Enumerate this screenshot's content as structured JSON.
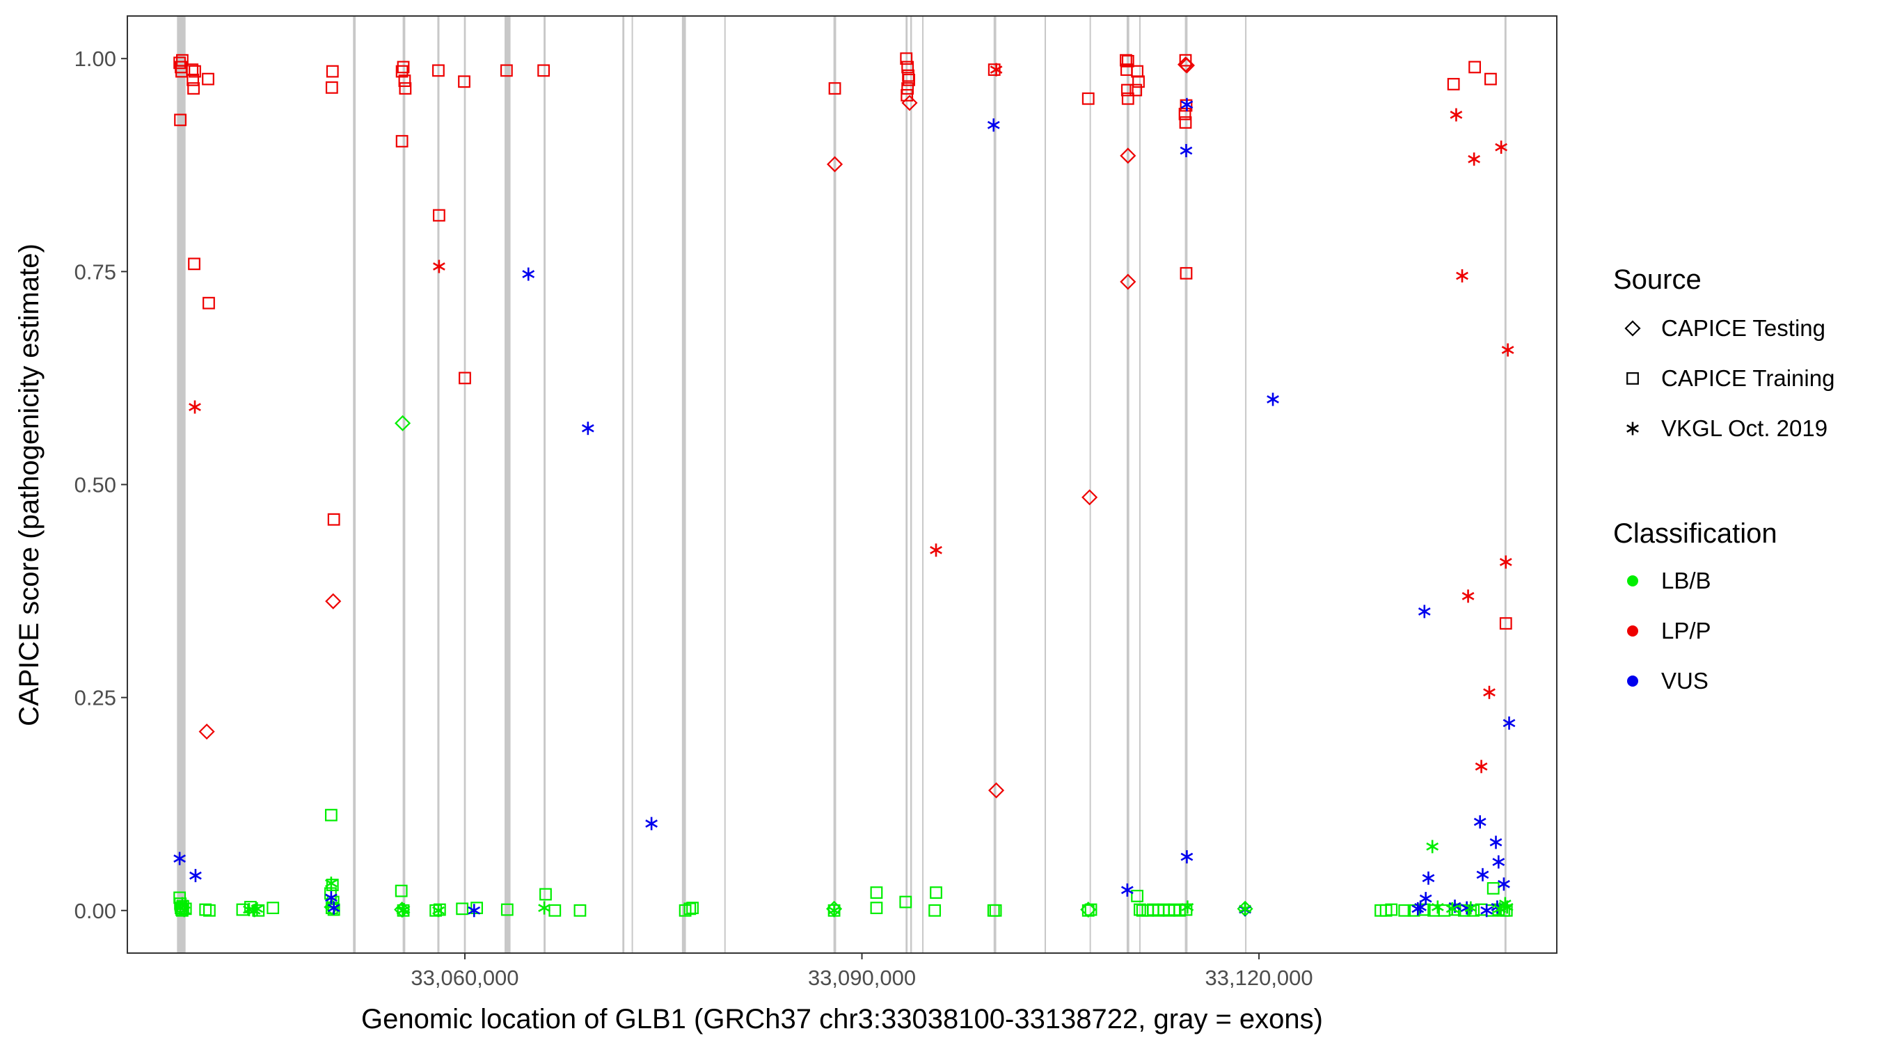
{
  "chart_data": {
    "type": "scatter",
    "title": "",
    "xlabel": "Genomic location of GLB1 (GRCh37 chr3:33038100-33138722, gray = exons)",
    "ylabel": "CAPICE score (pathogenicity estimate)",
    "xlim": [
      33034500,
      33142500
    ],
    "ylim": [
      -0.05,
      1.05
    ],
    "x_ticks": [
      {
        "value": 33060000,
        "label": "33,060,000"
      },
      {
        "value": 33090000,
        "label": "33,090,000"
      },
      {
        "value": 33120000,
        "label": "33,120,000"
      }
    ],
    "y_ticks": [
      {
        "value": 0.0,
        "label": "0.00"
      },
      {
        "value": 0.25,
        "label": "0.25"
      },
      {
        "value": 0.5,
        "label": "0.50"
      },
      {
        "value": 0.75,
        "label": "0.75"
      },
      {
        "value": 1.0,
        "label": "1.00"
      }
    ],
    "grid": false,
    "exons": [
      {
        "start": 33038250,
        "end": 33038900
      },
      {
        "start": 33051550,
        "end": 33051750
      },
      {
        "start": 33055300,
        "end": 33055500
      },
      {
        "start": 33057920,
        "end": 33058080
      },
      {
        "start": 33059930,
        "end": 33060070
      },
      {
        "start": 33063000,
        "end": 33063450
      },
      {
        "start": 33065950,
        "end": 33066100
      },
      {
        "start": 33071900,
        "end": 33072050
      },
      {
        "start": 33072600,
        "end": 33072700
      },
      {
        "start": 33076400,
        "end": 33076700
      },
      {
        "start": 33079600,
        "end": 33079700
      },
      {
        "start": 33087850,
        "end": 33088050
      },
      {
        "start": 33093300,
        "end": 33093450
      },
      {
        "start": 33093650,
        "end": 33093780
      },
      {
        "start": 33094550,
        "end": 33094650
      },
      {
        "start": 33099950,
        "end": 33100150
      },
      {
        "start": 33103800,
        "end": 33103900
      },
      {
        "start": 33107200,
        "end": 33107300
      },
      {
        "start": 33110000,
        "end": 33110200
      },
      {
        "start": 33110950,
        "end": 33111050
      },
      {
        "start": 33114400,
        "end": 33114600
      },
      {
        "start": 33118950,
        "end": 33119050
      },
      {
        "start": 33138550,
        "end": 33138700
      }
    ],
    "series": [
      {
        "source": "CAPICE Testing",
        "classification": "LP/P",
        "points": [
          [
            33040500,
            0.21
          ],
          [
            33050050,
            0.363
          ],
          [
            33087950,
            0.876
          ],
          [
            33093600,
            0.948
          ],
          [
            33100150,
            0.141
          ],
          [
            33107200,
            0.485
          ],
          [
            33110100,
            0.886
          ],
          [
            33110100,
            0.738
          ],
          [
            33114450,
            0.993
          ],
          [
            33114550,
            0.992
          ]
        ]
      },
      {
        "source": "CAPICE Testing",
        "classification": "LB/B",
        "points": [
          [
            33055300,
            0.572
          ],
          [
            33049950,
            0.004
          ],
          [
            33055250,
            0.001
          ],
          [
            33087900,
            0.002
          ],
          [
            33107100,
            0.001
          ],
          [
            33118950,
            0.002
          ]
        ]
      },
      {
        "source": "CAPICE Training",
        "classification": "LP/P",
        "points": [
          [
            33038450,
            0.995
          ],
          [
            33038550,
            0.99
          ],
          [
            33038600,
            0.985
          ],
          [
            33038650,
            0.998
          ],
          [
            33038500,
            0.928
          ],
          [
            33039400,
            0.987
          ],
          [
            33039450,
            0.975
          ],
          [
            33039500,
            0.965
          ],
          [
            33039600,
            0.985
          ],
          [
            33040600,
            0.976
          ],
          [
            33039550,
            0.759
          ],
          [
            33040650,
            0.713
          ],
          [
            33050000,
            0.985
          ],
          [
            33049950,
            0.966
          ],
          [
            33050100,
            0.459
          ],
          [
            33055350,
            0.99
          ],
          [
            33055250,
            0.985
          ],
          [
            33055450,
            0.974
          ],
          [
            33055500,
            0.965
          ],
          [
            33055250,
            0.903
          ],
          [
            33058000,
            0.986
          ],
          [
            33058050,
            0.816
          ],
          [
            33059950,
            0.973
          ],
          [
            33060000,
            0.625
          ],
          [
            33063150,
            0.986
          ],
          [
            33065950,
            0.986
          ],
          [
            33087950,
            0.965
          ],
          [
            33093350,
            1.0
          ],
          [
            33093450,
            0.99
          ],
          [
            33093500,
            0.98
          ],
          [
            33093550,
            0.975
          ],
          [
            33093450,
            0.965
          ],
          [
            33093400,
            0.957
          ],
          [
            33100000,
            0.987
          ],
          [
            33107100,
            0.953
          ],
          [
            33109950,
            0.998
          ],
          [
            33110100,
            0.997
          ],
          [
            33110000,
            0.987
          ],
          [
            33110050,
            0.963
          ],
          [
            33110100,
            0.953
          ],
          [
            33110800,
            0.985
          ],
          [
            33110900,
            0.973
          ],
          [
            33110700,
            0.963
          ],
          [
            33114450,
            0.998
          ],
          [
            33114500,
            0.945
          ],
          [
            33114400,
            0.935
          ],
          [
            33114450,
            0.925
          ],
          [
            33114500,
            0.748
          ],
          [
            33134700,
            0.97
          ],
          [
            33136300,
            0.99
          ],
          [
            33137500,
            0.976
          ],
          [
            33138650,
            0.337
          ]
        ]
      },
      {
        "source": "CAPICE Training",
        "classification": "LB/B",
        "points": [
          [
            33038450,
            0.015
          ],
          [
            33038500,
            0.008
          ],
          [
            33038550,
            0.003
          ],
          [
            33038600,
            0.001
          ],
          [
            33038650,
            0.0
          ],
          [
            33038700,
            0.005
          ],
          [
            33038900,
            0.002
          ],
          [
            33040400,
            0.001
          ],
          [
            33040700,
            0.0
          ],
          [
            33043200,
            0.001
          ],
          [
            33043800,
            0.004
          ],
          [
            33044400,
            0.0
          ],
          [
            33045500,
            0.003
          ],
          [
            33049900,
            0.112
          ],
          [
            33050000,
            0.03
          ],
          [
            33049850,
            0.02
          ],
          [
            33050050,
            0.01
          ],
          [
            33049950,
            0.003
          ],
          [
            33050100,
            0.001
          ],
          [
            33055200,
            0.023
          ],
          [
            33055350,
            0.0
          ],
          [
            33057800,
            0.0
          ],
          [
            33058100,
            0.001
          ],
          [
            33059800,
            0.002
          ],
          [
            33060900,
            0.003
          ],
          [
            33063200,
            0.001
          ],
          [
            33066100,
            0.019
          ],
          [
            33066800,
            0.0
          ],
          [
            33068700,
            0.0
          ],
          [
            33076650,
            0.0
          ],
          [
            33077000,
            0.002
          ],
          [
            33077200,
            0.003
          ],
          [
            33087900,
            0.0
          ],
          [
            33091100,
            0.021
          ],
          [
            33091100,
            0.003
          ],
          [
            33093300,
            0.01
          ],
          [
            33095500,
            0.0
          ],
          [
            33095600,
            0.021
          ],
          [
            33099950,
            0.0
          ],
          [
            33100100,
            0.0
          ],
          [
            33107100,
            0.0
          ],
          [
            33107300,
            0.001
          ],
          [
            33110800,
            0.017
          ],
          [
            33111000,
            0.001
          ],
          [
            33111200,
            0.0
          ],
          [
            33111600,
            0.0
          ],
          [
            33112000,
            0.001
          ],
          [
            33112400,
            0.0
          ],
          [
            33112800,
            0.001
          ],
          [
            33113200,
            0.0
          ],
          [
            33113600,
            0.001
          ],
          [
            33114000,
            0.0
          ],
          [
            33114500,
            0.001
          ],
          [
            33129200,
            0.0
          ],
          [
            33129600,
            0.0
          ],
          [
            33130000,
            0.001
          ],
          [
            33131000,
            0.0
          ],
          [
            33131700,
            0.0
          ],
          [
            33132500,
            0.001
          ],
          [
            33133200,
            0.0
          ],
          [
            33134000,
            0.0
          ],
          [
            33134800,
            0.001
          ],
          [
            33135500,
            0.0
          ],
          [
            33136200,
            0.0
          ],
          [
            33136800,
            0.001
          ],
          [
            33137600,
            0.0
          ],
          [
            33137700,
            0.026
          ],
          [
            33138100,
            0.001
          ],
          [
            33138500,
            0.0
          ],
          [
            33138700,
            0.0
          ]
        ]
      },
      {
        "source": "VKGL Oct. 2019",
        "classification": "LP/P",
        "points": [
          [
            33039600,
            0.591
          ],
          [
            33058050,
            0.756
          ],
          [
            33095600,
            0.423
          ],
          [
            33100150,
            0.987
          ],
          [
            33134900,
            0.934
          ],
          [
            33135350,
            0.745
          ],
          [
            33135800,
            0.369
          ],
          [
            33136250,
            0.882
          ],
          [
            33136800,
            0.169
          ],
          [
            33137400,
            0.256
          ],
          [
            33138300,
            0.896
          ],
          [
            33138650,
            0.409
          ],
          [
            33138800,
            0.658
          ]
        ]
      },
      {
        "source": "VKGL Oct. 2019",
        "classification": "VUS",
        "points": [
          [
            33038450,
            0.061
          ],
          [
            33039650,
            0.041
          ],
          [
            33049900,
            0.015
          ],
          [
            33050100,
            0.003
          ],
          [
            33060700,
            0.0
          ],
          [
            33064800,
            0.747
          ],
          [
            33069300,
            0.566
          ],
          [
            33074100,
            0.102
          ],
          [
            33099950,
            0.922
          ],
          [
            33110050,
            0.024
          ],
          [
            33114550,
            0.946
          ],
          [
            33114500,
            0.892
          ],
          [
            33114550,
            0.063
          ],
          [
            33118950,
            0.001
          ],
          [
            33121050,
            0.6
          ],
          [
            33132500,
            0.351
          ],
          [
            33132800,
            0.038
          ],
          [
            33132600,
            0.014
          ],
          [
            33132200,
            0.004
          ],
          [
            33132000,
            0.002
          ],
          [
            33134800,
            0.005
          ],
          [
            33135700,
            0.003
          ],
          [
            33136700,
            0.104
          ],
          [
            33136900,
            0.042
          ],
          [
            33137200,
            0.0
          ],
          [
            33137900,
            0.08
          ],
          [
            33138100,
            0.057
          ],
          [
            33138500,
            0.031
          ],
          [
            33138000,
            0.004
          ],
          [
            33138900,
            0.22
          ]
        ]
      },
      {
        "source": "VKGL Oct. 2019",
        "classification": "LB/B",
        "points": [
          [
            33038500,
            0.003
          ],
          [
            33038650,
            0.008
          ],
          [
            33038800,
            0.0
          ],
          [
            33043700,
            0.001
          ],
          [
            33044100,
            0.0
          ],
          [
            33044300,
            0.002
          ],
          [
            33049900,
            0.032
          ],
          [
            33055300,
            0.0
          ],
          [
            33055400,
            0.001
          ],
          [
            33058000,
            0.0
          ],
          [
            33066000,
            0.003
          ],
          [
            33087900,
            0.0
          ],
          [
            33114600,
            0.004
          ],
          [
            33118950,
            0.002
          ],
          [
            33133100,
            0.075
          ],
          [
            33133500,
            0.004
          ],
          [
            33134600,
            0.002
          ],
          [
            33136000,
            0.003
          ],
          [
            33138200,
            0.002
          ],
          [
            33138600,
            0.008
          ],
          [
            33138750,
            0.004
          ]
        ]
      }
    ],
    "legend": {
      "placement": "right",
      "source": {
        "title": "Source",
        "items": [
          {
            "label": "CAPICE Testing",
            "shape": "diamond"
          },
          {
            "label": "CAPICE Training",
            "shape": "square"
          },
          {
            "label": "VKGL Oct. 2019",
            "shape": "asterisk"
          }
        ]
      },
      "classification": {
        "title": "Classification",
        "items": [
          {
            "label": "LB/B",
            "color": "#00ee00"
          },
          {
            "label": "LP/P",
            "color": "#ee0000"
          },
          {
            "label": "VUS",
            "color": "#0000ee"
          }
        ]
      }
    },
    "colors": {
      "LB/B": "#00ee00",
      "LP/P": "#ee0000",
      "VUS": "#0000ee",
      "exon": "#c8c8c8",
      "axis_text": "#4d4d4d"
    }
  }
}
